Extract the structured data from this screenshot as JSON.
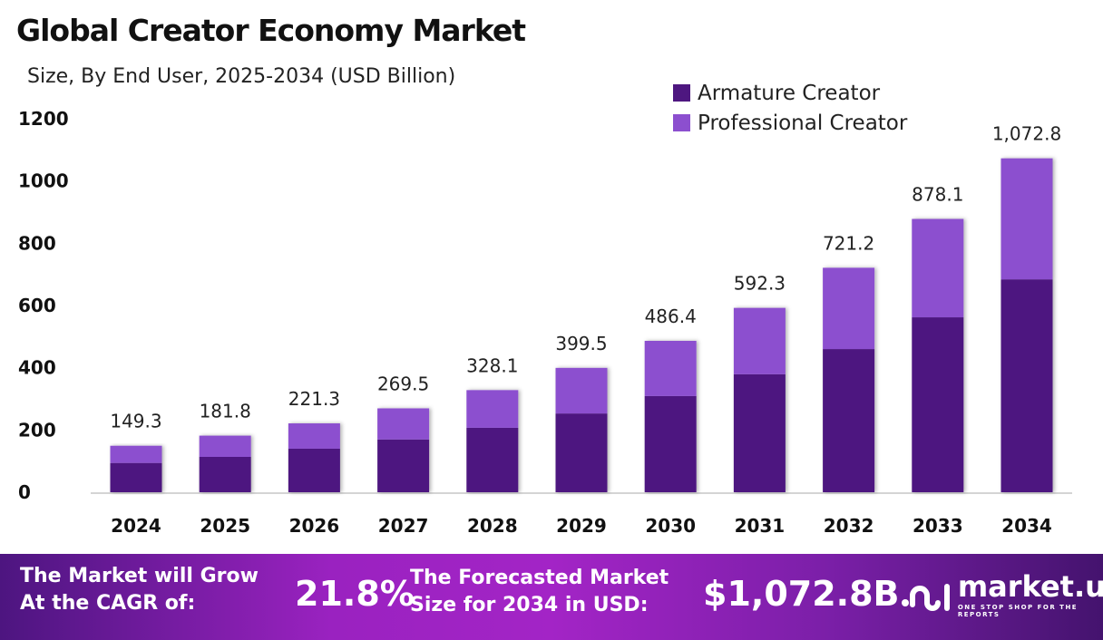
{
  "chart_data": {
    "type": "bar",
    "stacked": true,
    "title": "Global Creator Economy Market",
    "subtitle": "Size, By End User, 2025-2034 (USD Billion)",
    "categories": [
      "2024",
      "2025",
      "2026",
      "2027",
      "2028",
      "2029",
      "2030",
      "2031",
      "2032",
      "2033",
      "2034"
    ],
    "series": [
      {
        "name": "Armature Creator",
        "color": "#4e1780",
        "values": [
          94.1,
          113.6,
          139.9,
          169.5,
          207.0,
          253.0,
          309.0,
          379.0,
          460.0,
          562.0,
          684.0
        ]
      },
      {
        "name": "Professional Creator",
        "color": "#8c4fcf",
        "values": [
          55.2,
          68.2,
          81.4,
          100.0,
          121.1,
          146.5,
          177.4,
          213.3,
          261.2,
          316.1,
          388.8
        ]
      }
    ],
    "totals_labels": [
      "149.3",
      "181.8",
      "221.3",
      "269.5",
      "328.1",
      "399.5",
      "486.4",
      "592.3",
      "721.2",
      "878.1",
      "1,072.8"
    ],
    "totals": [
      149.3,
      181.8,
      221.3,
      269.5,
      328.1,
      399.5,
      486.4,
      592.3,
      721.2,
      878.1,
      1072.8
    ],
    "yticks": [
      "0",
      "200",
      "400",
      "600",
      "800",
      "1000",
      "1200"
    ],
    "ylim": [
      0,
      1200
    ],
    "grid": false,
    "legend": "top-right"
  },
  "footer": {
    "cagr_text_1": "The Market will Grow",
    "cagr_text_2": "At the CAGR of:",
    "cagr_value": "21.8%",
    "forecast_text_1": "The Forecasted Market",
    "forecast_text_2": "Size for 2034 in USD:",
    "forecast_value": "$1,072.8B",
    "logo_name": "market.us",
    "logo_tagline": "ONE STOP SHOP FOR THE REPORTS"
  }
}
